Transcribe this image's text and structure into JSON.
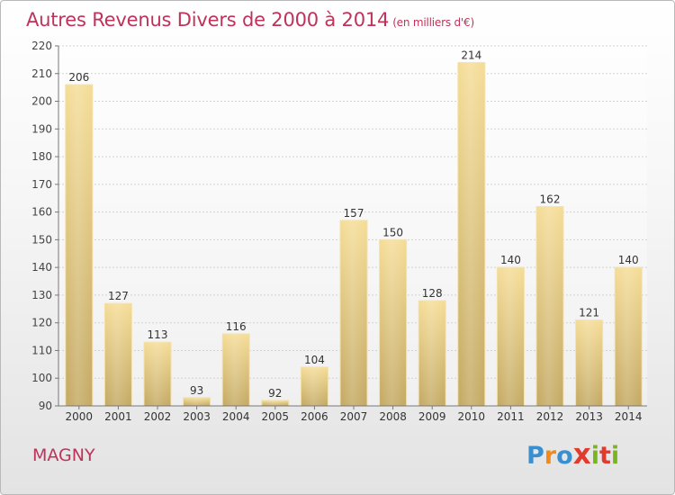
{
  "title": "Autres Revenus Divers de 2000 à 2014",
  "subtitle": "(en milliers d'€)",
  "location": "MAGNY",
  "logo": {
    "letters": [
      "P",
      "r",
      "o",
      "x",
      "i",
      "t",
      "i"
    ],
    "colors": [
      "#3a8fd0",
      "#f08a1c",
      "#3a8fd0",
      "#e23b2e",
      "#7ab51d",
      "#e23b2e",
      "#7ab51d"
    ]
  },
  "colors": {
    "accent": "#c0325a",
    "bar_top": "#f5dc96",
    "bar_bottom": "#c3a861"
  },
  "chart_data": {
    "type": "bar",
    "categories": [
      "2000",
      "2001",
      "2002",
      "2003",
      "2004",
      "2005",
      "2006",
      "2007",
      "2008",
      "2009",
      "2010",
      "2011",
      "2012",
      "2013",
      "2014"
    ],
    "values": [
      206,
      127,
      113,
      93,
      116,
      92,
      104,
      157,
      150,
      128,
      214,
      140,
      162,
      121,
      140
    ],
    "data_labels": [
      "206",
      "127",
      "113",
      "93",
      "116",
      "92",
      "104",
      "157",
      "150",
      "128",
      "214",
      "140",
      "162",
      "121",
      "140"
    ],
    "yticks": [
      "90",
      "100",
      "110",
      "120",
      "130",
      "140",
      "150",
      "160",
      "170",
      "180",
      "190",
      "200",
      "210",
      "220"
    ],
    "ylim": [
      90,
      220
    ],
    "xlabel": "",
    "ylabel": "",
    "grid": true,
    "legend": "none"
  }
}
